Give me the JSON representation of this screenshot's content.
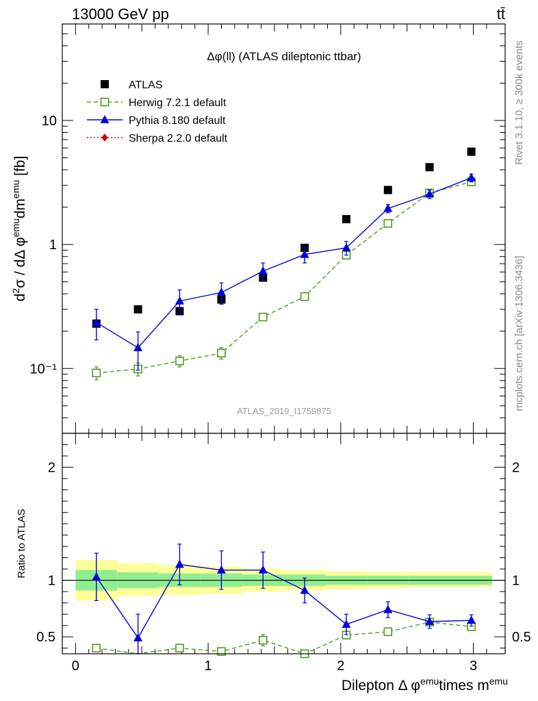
{
  "header": {
    "left": "13000 GeV pp",
    "right": "tt̄"
  },
  "side_labels": {
    "rivet": "Rivet 3.1.10, ≥ 300k events",
    "mcplots": "mcplots.cern.ch [arXiv:1306.3436]"
  },
  "colors": {
    "atlas": "#000000",
    "herwig": "#4a9a1a",
    "pythia": "#0000dd",
    "sherpa": "#dd0000",
    "band_inner": "#90ee90",
    "band_outer": "#ffff99"
  },
  "chart_data": [
    {
      "type": "scatter",
      "panel": "main",
      "title": "Δφ(ll) (ATLAS dileptonic ttbar)",
      "analysis_label": "ATLAS_2019_I1759875",
      "ylabel": "d²σ / dΔ φemudmemu [fb]",
      "yscale": "log",
      "xlim": [
        -0.1,
        3.24
      ],
      "ylim": [
        0.03,
        60
      ],
      "y_ticks": [
        {
          "value": 0.1,
          "label": "10⁻¹"
        },
        {
          "value": 1,
          "label": "1"
        },
        {
          "value": 10,
          "label": "10"
        }
      ],
      "legend_position": "top-left",
      "series": [
        {
          "name": "ATLAS",
          "color": "#000000",
          "marker": "square",
          "line": "none",
          "x": [
            0.157,
            0.471,
            0.785,
            1.1,
            1.414,
            1.728,
            2.042,
            2.356,
            2.67,
            2.985
          ],
          "y": [
            0.23,
            0.3,
            0.29,
            0.36,
            0.54,
            0.94,
            1.6,
            2.75,
            4.2,
            5.6
          ]
        },
        {
          "name": "Herwig 7.2.1 default",
          "color": "#4a9a1a",
          "marker": "open-square",
          "line": "dashed",
          "x": [
            0.157,
            0.471,
            0.785,
            1.1,
            1.414,
            1.728,
            2.042,
            2.356,
            2.67,
            2.985
          ],
          "y": [
            0.092,
            0.099,
            0.115,
            0.133,
            0.26,
            0.38,
            0.82,
            1.48,
            2.6,
            3.2
          ],
          "err": [
            0.011,
            0.012,
            0.012,
            0.014,
            0.015,
            0.02,
            0.05,
            0.07,
            0.12,
            0.15
          ]
        },
        {
          "name": "Pythia 8.180 default",
          "color": "#0000dd",
          "marker": "triangle",
          "line": "solid",
          "x": [
            0.157,
            0.471,
            0.785,
            1.1,
            1.414,
            1.728,
            2.042,
            2.356,
            2.67,
            2.985
          ],
          "y": [
            0.235,
            0.147,
            0.35,
            0.41,
            0.61,
            0.83,
            0.94,
            1.95,
            2.55,
            3.45
          ],
          "err": [
            0.065,
            0.05,
            0.08,
            0.08,
            0.1,
            0.12,
            0.12,
            0.15,
            0.2,
            0.25
          ]
        },
        {
          "name": "Sherpa 2.2.0 default",
          "color": "#dd0000",
          "marker": "diamond",
          "line": "dotted",
          "x": [],
          "y": []
        }
      ]
    },
    {
      "type": "scatter",
      "panel": "ratio",
      "ylabel": "Ratio to ATLAS",
      "xlabel": "Dilepton Δ φemutimes memu",
      "xlim": [
        -0.1,
        3.24
      ],
      "ylim": [
        0.35,
        2.3
      ],
      "x_ticks": [
        0,
        1,
        2,
        3
      ],
      "y_ticks": [
        0.5,
        1,
        2
      ],
      "reference_line": 1,
      "bands": {
        "edges": [
          0,
          0.314,
          0.628,
          0.942,
          1.257,
          1.571,
          1.885,
          2.199,
          2.513,
          2.827,
          3.142
        ],
        "inner_lo": [
          0.91,
          0.93,
          0.94,
          0.94,
          0.95,
          0.95,
          0.96,
          0.96,
          0.96,
          0.96
        ],
        "inner_hi": [
          1.09,
          1.07,
          1.06,
          1.06,
          1.05,
          1.05,
          1.04,
          1.04,
          1.04,
          1.04
        ],
        "outer_lo": [
          0.82,
          0.86,
          0.87,
          0.88,
          0.9,
          0.91,
          0.92,
          0.93,
          0.94,
          0.94
        ],
        "outer_hi": [
          1.18,
          1.15,
          1.13,
          1.12,
          1.1,
          1.09,
          1.08,
          1.07,
          1.07,
          1.07
        ]
      },
      "series": [
        {
          "name": "Herwig 7.2.1 default",
          "color": "#4a9a1a",
          "marker": "open-square",
          "line": "dashed",
          "x": [
            0.157,
            0.471,
            0.785,
            1.1,
            1.414,
            1.728,
            2.042,
            2.356,
            2.67,
            2.985
          ],
          "y": [
            0.4,
            0.33,
            0.4,
            0.37,
            0.47,
            0.35,
            0.515,
            0.545,
            0.63,
            0.59
          ],
          "err": [
            0,
            0,
            0,
            0,
            0.05,
            0.025,
            0.03,
            0.02,
            0.025,
            0.03
          ]
        },
        {
          "name": "Pythia 8.180 default",
          "color": "#0000dd",
          "marker": "triangle",
          "line": "solid",
          "x": [
            0.157,
            0.471,
            0.785,
            1.1,
            1.414,
            1.728,
            2.042,
            2.356,
            2.67,
            2.985
          ],
          "y": [
            1.03,
            0.49,
            1.14,
            1.09,
            1.09,
            0.91,
            0.61,
            0.74,
            0.635,
            0.645
          ],
          "err": [
            0.21,
            0.21,
            0.18,
            0.17,
            0.16,
            0.11,
            0.09,
            0.07,
            0.06,
            0.05
          ]
        }
      ]
    }
  ]
}
